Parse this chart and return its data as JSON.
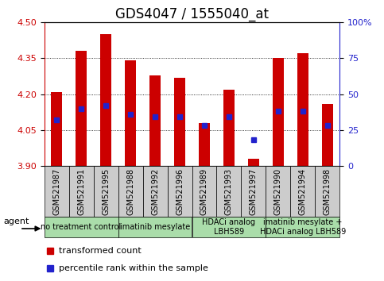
{
  "title": "GDS4047 / 1555040_at",
  "samples": [
    "GSM521987",
    "GSM521991",
    "GSM521995",
    "GSM521988",
    "GSM521992",
    "GSM521996",
    "GSM521989",
    "GSM521993",
    "GSM521997",
    "GSM521990",
    "GSM521994",
    "GSM521998"
  ],
  "bar_bottom": 3.9,
  "transformed_counts": [
    4.21,
    4.38,
    4.45,
    4.34,
    4.28,
    4.27,
    4.08,
    4.22,
    3.93,
    4.35,
    4.37,
    4.16
  ],
  "percentile_ranks": [
    32,
    40,
    42,
    36,
    34,
    34,
    28,
    34,
    18,
    38,
    38,
    28
  ],
  "ylim_left": [
    3.9,
    4.5
  ],
  "ylim_right": [
    0,
    100
  ],
  "yticks_left": [
    3.9,
    4.05,
    4.2,
    4.35,
    4.5
  ],
  "yticks_right": [
    0,
    25,
    50,
    75,
    100
  ],
  "grid_values": [
    4.05,
    4.2,
    4.35
  ],
  "bar_color": "#cc0000",
  "percentile_color": "#2222cc",
  "bar_width": 0.45,
  "group_labels": [
    "no treatment control",
    "imatinib mesylate",
    "HDACi analog\nLBH589",
    "imatinib mesylate +\nHDACi analog LBH589"
  ],
  "group_starts": [
    0,
    3,
    6,
    9
  ],
  "group_ends": [
    3,
    6,
    9,
    12
  ],
  "group_bg_color": "#aaddaa",
  "sample_bg_color": "#cccccc",
  "left_axis_color": "#cc0000",
  "right_axis_color": "#2222cc",
  "title_fontsize": 12,
  "legend_label_count": "transformed count",
  "legend_label_pct": "percentile rank within the sample"
}
